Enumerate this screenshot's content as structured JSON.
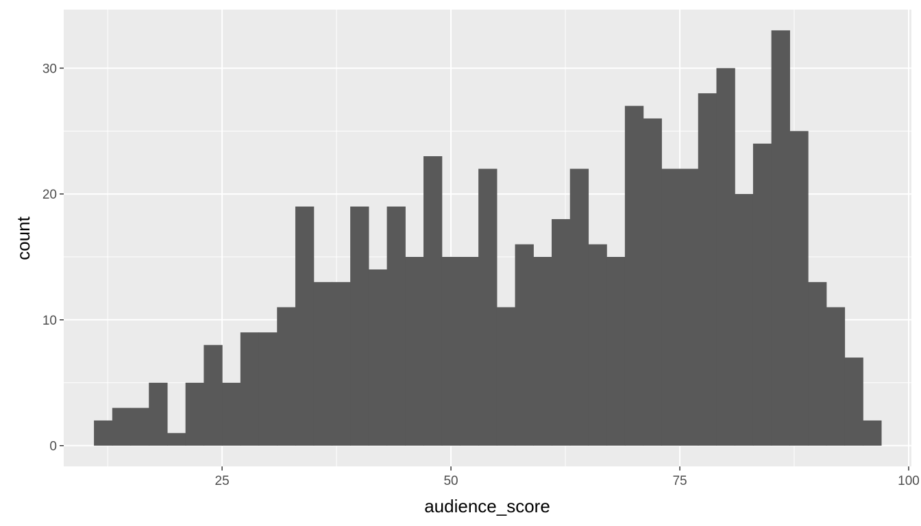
{
  "chart_data": {
    "type": "bar",
    "subtype": "histogram",
    "xlabel": "audience_score",
    "ylabel": "count",
    "xlim": [
      7.7,
      100.3
    ],
    "ylim": [
      -1.65,
      34.65
    ],
    "x_ticks": [
      25,
      50,
      75,
      100
    ],
    "x_tick_labels": [
      "25",
      "50",
      "75",
      "100"
    ],
    "y_ticks": [
      0,
      10,
      20,
      30
    ],
    "y_tick_labels": [
      "0",
      "10",
      "20",
      "30"
    ],
    "bin_width": 2,
    "bin_starts": [
      11,
      13,
      15,
      17,
      19,
      21,
      23,
      25,
      27,
      29,
      31,
      33,
      35,
      37,
      39,
      41,
      43,
      45,
      47,
      49,
      51,
      53,
      55,
      57,
      59,
      61,
      63,
      65,
      67,
      69,
      71,
      73,
      75,
      77,
      79,
      81,
      83,
      85,
      87,
      89,
      91,
      93,
      95
    ],
    "values": [
      2,
      3,
      3,
      5,
      1,
      5,
      8,
      5,
      9,
      9,
      11,
      19,
      13,
      13,
      19,
      14,
      19,
      15,
      23,
      15,
      15,
      22,
      11,
      16,
      15,
      18,
      22,
      16,
      15,
      27,
      26,
      22,
      22,
      28,
      30,
      20,
      24,
      33,
      25,
      13,
      11,
      7,
      2
    ],
    "grid": true,
    "legend": "none",
    "colors": {
      "panel_background": "#ebebeb",
      "grid_major": "#ffffff",
      "bar_fill": "#595959",
      "tick_text": "#4d4d4d",
      "tick_mark": "#333333",
      "axis_title": "#000000"
    }
  }
}
